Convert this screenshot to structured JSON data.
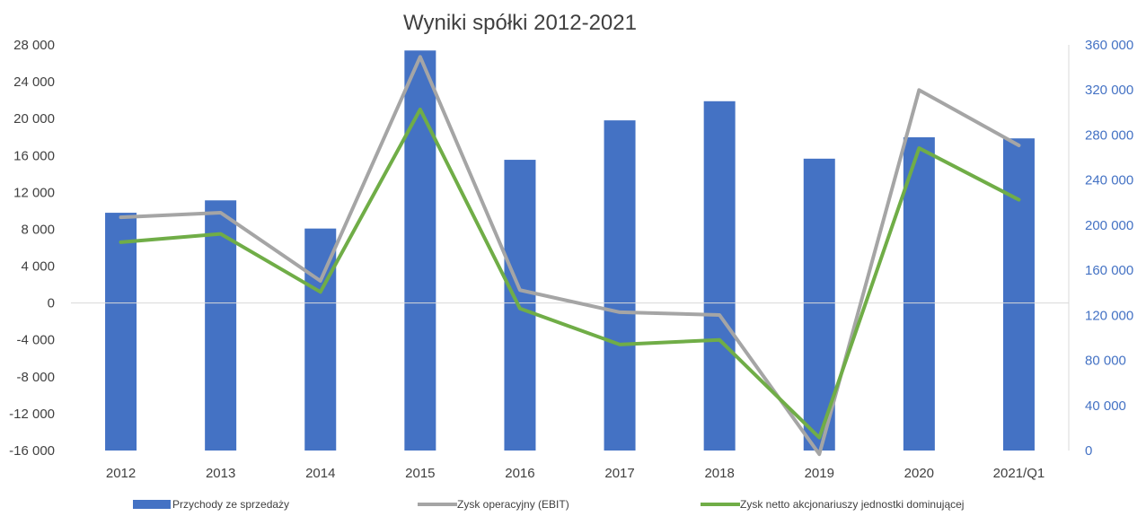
{
  "chart_data": {
    "type": "bar",
    "title": "Wyniki spółki 2012-2021",
    "categories": [
      "2012",
      "2013",
      "2014",
      "2015",
      "2016",
      "2017",
      "2018",
      "2019",
      "2020",
      "2021/Q1"
    ],
    "y_left": {
      "ylim": [
        -16000,
        28000
      ],
      "ticks": [
        -16000,
        -12000,
        -8000,
        -4000,
        0,
        4000,
        8000,
        12000,
        16000,
        20000,
        24000,
        28000
      ],
      "tick_labels": [
        "-16 000",
        "-12 000",
        "-8 000",
        "-4 000",
        "0",
        "4 000",
        "8 000",
        "12 000",
        "16 000",
        "20 000",
        "24 000",
        "28 000"
      ]
    },
    "y_right": {
      "ylim": [
        0,
        360000
      ],
      "ticks": [
        0,
        40000,
        80000,
        120000,
        160000,
        200000,
        240000,
        280000,
        320000,
        360000
      ],
      "tick_labels": [
        "0",
        "40 000",
        "80 000",
        "120 000",
        "160 000",
        "200 000",
        "240 000",
        "280 000",
        "320 000",
        "360 000"
      ]
    },
    "grid": false,
    "legend_position": "bottom",
    "series": [
      {
        "name": "Przychody ze sprzedaży",
        "type": "bar",
        "axis": "right",
        "color": "#4472C4",
        "values": [
          211000,
          222000,
          197000,
          355000,
          258000,
          293000,
          310000,
          259000,
          278000,
          277000
        ]
      },
      {
        "name": "Zysk operacyjny (EBIT)",
        "type": "line",
        "axis": "left",
        "color": "#A5A5A5",
        "values": [
          9300,
          9800,
          2400,
          26700,
          1400,
          -1000,
          -1300,
          -16400,
          23100,
          17100
        ]
      },
      {
        "name": "Zysk netto akcjonariuszy jednostki dominującej",
        "type": "line",
        "axis": "left",
        "color": "#70AD47",
        "values": [
          6600,
          7500,
          1200,
          21000,
          -600,
          -4500,
          -4000,
          -14600,
          16800,
          11200
        ]
      }
    ]
  }
}
